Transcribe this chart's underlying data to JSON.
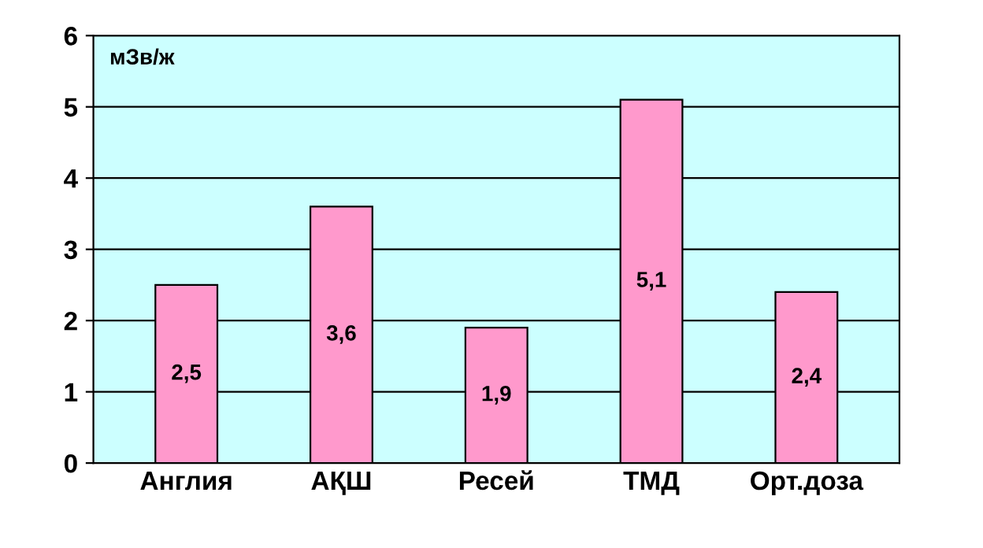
{
  "chart_data": {
    "type": "bar",
    "ylabel": "мЗв/ж",
    "categories": [
      "Англия",
      "АҚШ",
      "Ресей",
      "ТМД",
      "Орт.доза"
    ],
    "values": [
      2.5,
      3.6,
      1.9,
      5.1,
      2.4
    ],
    "value_labels": [
      "2,5",
      "3,6",
      "1,9",
      "5,1",
      "2,4"
    ],
    "color": "#ff99cc",
    "ylim": [
      0,
      6
    ],
    "yticks": [
      0,
      1,
      2,
      3,
      4,
      5,
      6
    ],
    "grid": "y"
  }
}
